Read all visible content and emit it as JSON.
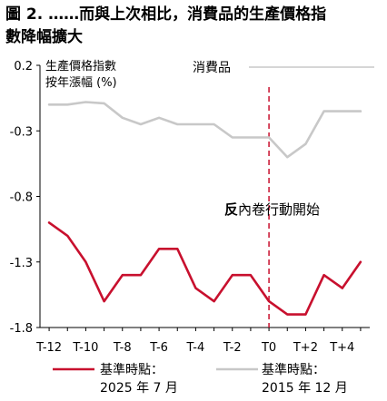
{
  "title": {
    "line1": "圖 2. ……而與上次相比，消費品的生產價格指",
    "line2": "數降幅擴大"
  },
  "chart_data": {
    "type": "line",
    "ylabel_lines": [
      "生產價格指數",
      "按年漲幅 (%)"
    ],
    "panel_label": "消費品",
    "y_ticks": [
      "0.2",
      "-0.3",
      "-0.8",
      "-1.3",
      "-1.8"
    ],
    "ylim": [
      -1.8,
      0.2
    ],
    "x_ticks": [
      "T-12",
      "T-10",
      "T-8",
      "T-6",
      "T-4",
      "T-2",
      "T0",
      "T+2",
      "T+4"
    ],
    "x": [
      -12,
      -11,
      -10,
      -9,
      -8,
      -7,
      -6,
      -5,
      -4,
      -3,
      -2,
      -1,
      0,
      1,
      2,
      3,
      4,
      5
    ],
    "xlim": [
      -12.5,
      5.5
    ],
    "series": [
      {
        "name_lines": [
          "基準時點：",
          "2025 年 7 月"
        ],
        "color": "#c8102e",
        "values": [
          -1.0,
          -1.1,
          -1.3,
          -1.6,
          -1.4,
          -1.4,
          -1.2,
          -1.2,
          -1.5,
          -1.6,
          -1.4,
          -1.4,
          -1.6,
          -1.7,
          -1.7,
          -1.4,
          -1.5,
          -1.3
        ]
      },
      {
        "name_lines": [
          "基準時點：",
          "2015 年 12 月"
        ],
        "color": "#c8c8c8",
        "values": [
          -0.1,
          -0.1,
          -0.08,
          -0.09,
          -0.2,
          -0.25,
          -0.2,
          -0.25,
          -0.25,
          -0.25,
          -0.35,
          -0.35,
          -0.35,
          -0.5,
          -0.4,
          -0.15,
          -0.15,
          -0.15
        ]
      }
    ],
    "annotation": {
      "text_bold": "反",
      "text_rest": "內卷行動開始",
      "x": 0
    },
    "grid": false,
    "legend": "bottom"
  }
}
